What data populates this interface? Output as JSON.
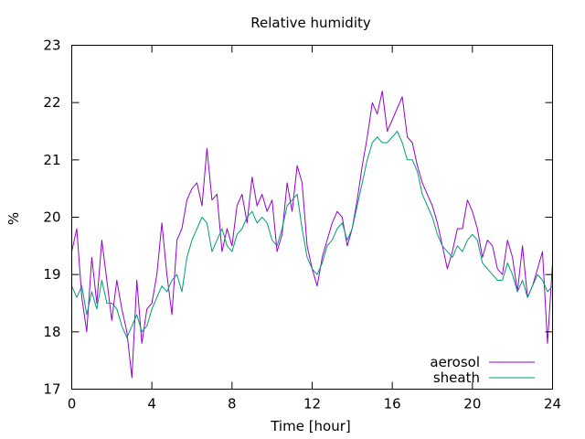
{
  "chart_data": {
    "type": "line",
    "title": "Relative humidity",
    "xlabel": "Time [hour]",
    "ylabel": "%",
    "xlim": [
      0,
      24
    ],
    "ylim": [
      17,
      23
    ],
    "xticks": [
      0,
      4,
      8,
      12,
      16,
      20,
      24
    ],
    "yticks": [
      17,
      18,
      19,
      20,
      21,
      22,
      23
    ],
    "grid": false,
    "legend_position": "bottom-right",
    "series": [
      {
        "name": "aerosol",
        "color": "#9400d3",
        "points": [
          [
            0.0,
            19.4
          ],
          [
            0.25,
            19.8
          ],
          [
            0.5,
            18.6
          ],
          [
            0.75,
            18.0
          ],
          [
            1.0,
            19.3
          ],
          [
            1.25,
            18.5
          ],
          [
            1.5,
            19.6
          ],
          [
            1.75,
            18.9
          ],
          [
            2.0,
            18.2
          ],
          [
            2.25,
            18.9
          ],
          [
            2.5,
            18.4
          ],
          [
            2.75,
            18.0
          ],
          [
            3.0,
            17.2
          ],
          [
            3.25,
            18.9
          ],
          [
            3.5,
            17.8
          ],
          [
            3.75,
            18.4
          ],
          [
            4.0,
            18.5
          ],
          [
            4.25,
            19.0
          ],
          [
            4.5,
            19.9
          ],
          [
            4.75,
            19.0
          ],
          [
            5.0,
            18.3
          ],
          [
            5.25,
            19.6
          ],
          [
            5.5,
            19.8
          ],
          [
            5.75,
            20.3
          ],
          [
            6.0,
            20.5
          ],
          [
            6.25,
            20.6
          ],
          [
            6.5,
            20.2
          ],
          [
            6.75,
            21.2
          ],
          [
            7.0,
            20.3
          ],
          [
            7.25,
            20.4
          ],
          [
            7.5,
            19.4
          ],
          [
            7.75,
            19.8
          ],
          [
            8.0,
            19.5
          ],
          [
            8.25,
            20.2
          ],
          [
            8.5,
            20.4
          ],
          [
            8.75,
            19.9
          ],
          [
            9.0,
            20.7
          ],
          [
            9.25,
            20.2
          ],
          [
            9.5,
            20.4
          ],
          [
            9.75,
            20.1
          ],
          [
            10.0,
            20.3
          ],
          [
            10.25,
            19.4
          ],
          [
            10.5,
            19.7
          ],
          [
            10.75,
            20.6
          ],
          [
            11.0,
            20.1
          ],
          [
            11.25,
            20.9
          ],
          [
            11.5,
            20.6
          ],
          [
            11.75,
            19.5
          ],
          [
            12.0,
            19.1
          ],
          [
            12.25,
            18.8
          ],
          [
            12.5,
            19.3
          ],
          [
            12.75,
            19.6
          ],
          [
            13.0,
            19.9
          ],
          [
            13.25,
            20.1
          ],
          [
            13.5,
            20.0
          ],
          [
            13.75,
            19.5
          ],
          [
            14.0,
            19.8
          ],
          [
            14.25,
            20.3
          ],
          [
            14.5,
            20.9
          ],
          [
            14.75,
            21.4
          ],
          [
            15.0,
            22.0
          ],
          [
            15.25,
            21.8
          ],
          [
            15.5,
            22.2
          ],
          [
            15.75,
            21.5
          ],
          [
            16.0,
            21.7
          ],
          [
            16.25,
            21.9
          ],
          [
            16.5,
            22.1
          ],
          [
            16.75,
            21.4
          ],
          [
            17.0,
            21.3
          ],
          [
            17.25,
            20.9
          ],
          [
            17.5,
            20.6
          ],
          [
            17.75,
            20.4
          ],
          [
            18.0,
            20.2
          ],
          [
            18.25,
            19.9
          ],
          [
            18.5,
            19.5
          ],
          [
            18.75,
            19.1
          ],
          [
            19.0,
            19.4
          ],
          [
            19.25,
            19.8
          ],
          [
            19.5,
            19.8
          ],
          [
            19.75,
            20.3
          ],
          [
            20.0,
            20.1
          ],
          [
            20.25,
            19.8
          ],
          [
            20.5,
            19.3
          ],
          [
            20.75,
            19.6
          ],
          [
            21.0,
            19.5
          ],
          [
            21.25,
            19.1
          ],
          [
            21.5,
            19.0
          ],
          [
            21.75,
            19.6
          ],
          [
            22.0,
            19.3
          ],
          [
            22.25,
            18.7
          ],
          [
            22.5,
            19.5
          ],
          [
            22.75,
            18.6
          ],
          [
            23.0,
            18.8
          ],
          [
            23.25,
            19.1
          ],
          [
            23.5,
            19.4
          ],
          [
            23.75,
            17.8
          ],
          [
            24.0,
            19.2
          ]
        ]
      },
      {
        "name": "sheath",
        "color": "#009e73",
        "points": [
          [
            0.0,
            18.8
          ],
          [
            0.25,
            18.6
          ],
          [
            0.5,
            18.8
          ],
          [
            0.75,
            18.3
          ],
          [
            1.0,
            18.7
          ],
          [
            1.25,
            18.4
          ],
          [
            1.5,
            18.9
          ],
          [
            1.75,
            18.5
          ],
          [
            2.0,
            18.5
          ],
          [
            2.25,
            18.4
          ],
          [
            2.5,
            18.1
          ],
          [
            2.75,
            17.9
          ],
          [
            3.0,
            18.1
          ],
          [
            3.25,
            18.3
          ],
          [
            3.5,
            18.0
          ],
          [
            3.75,
            18.1
          ],
          [
            4.0,
            18.4
          ],
          [
            4.25,
            18.6
          ],
          [
            4.5,
            18.8
          ],
          [
            4.75,
            18.7
          ],
          [
            5.0,
            18.9
          ],
          [
            5.25,
            19.0
          ],
          [
            5.5,
            18.7
          ],
          [
            5.75,
            19.3
          ],
          [
            6.0,
            19.6
          ],
          [
            6.25,
            19.8
          ],
          [
            6.5,
            20.0
          ],
          [
            6.75,
            19.9
          ],
          [
            7.0,
            19.4
          ],
          [
            7.25,
            19.6
          ],
          [
            7.5,
            19.8
          ],
          [
            7.75,
            19.5
          ],
          [
            8.0,
            19.4
          ],
          [
            8.25,
            19.7
          ],
          [
            8.5,
            19.8
          ],
          [
            8.75,
            20.0
          ],
          [
            9.0,
            20.1
          ],
          [
            9.25,
            19.9
          ],
          [
            9.5,
            20.0
          ],
          [
            9.75,
            19.9
          ],
          [
            10.0,
            19.6
          ],
          [
            10.25,
            19.5
          ],
          [
            10.5,
            19.8
          ],
          [
            10.75,
            20.2
          ],
          [
            11.0,
            20.3
          ],
          [
            11.25,
            20.4
          ],
          [
            11.5,
            19.8
          ],
          [
            11.75,
            19.3
          ],
          [
            12.0,
            19.1
          ],
          [
            12.25,
            19.0
          ],
          [
            12.5,
            19.2
          ],
          [
            12.75,
            19.5
          ],
          [
            13.0,
            19.6
          ],
          [
            13.25,
            19.8
          ],
          [
            13.5,
            19.9
          ],
          [
            13.75,
            19.6
          ],
          [
            14.0,
            19.8
          ],
          [
            14.25,
            20.2
          ],
          [
            14.5,
            20.6
          ],
          [
            14.75,
            21.0
          ],
          [
            15.0,
            21.3
          ],
          [
            15.25,
            21.4
          ],
          [
            15.5,
            21.3
          ],
          [
            15.75,
            21.3
          ],
          [
            16.0,
            21.4
          ],
          [
            16.25,
            21.5
          ],
          [
            16.5,
            21.3
          ],
          [
            16.75,
            21.0
          ],
          [
            17.0,
            21.0
          ],
          [
            17.25,
            20.8
          ],
          [
            17.5,
            20.4
          ],
          [
            17.75,
            20.2
          ],
          [
            18.0,
            20.0
          ],
          [
            18.25,
            19.7
          ],
          [
            18.5,
            19.5
          ],
          [
            18.75,
            19.4
          ],
          [
            19.0,
            19.3
          ],
          [
            19.25,
            19.5
          ],
          [
            19.5,
            19.4
          ],
          [
            19.75,
            19.6
          ],
          [
            20.0,
            19.7
          ],
          [
            20.25,
            19.6
          ],
          [
            20.5,
            19.2
          ],
          [
            20.75,
            19.1
          ],
          [
            21.0,
            19.0
          ],
          [
            21.25,
            18.9
          ],
          [
            21.5,
            18.9
          ],
          [
            21.75,
            19.2
          ],
          [
            22.0,
            19.0
          ],
          [
            22.25,
            18.7
          ],
          [
            22.5,
            18.9
          ],
          [
            22.75,
            18.6
          ],
          [
            23.0,
            18.8
          ],
          [
            23.25,
            19.0
          ],
          [
            23.5,
            18.9
          ],
          [
            23.75,
            18.7
          ],
          [
            24.0,
            18.8
          ]
        ]
      }
    ]
  }
}
